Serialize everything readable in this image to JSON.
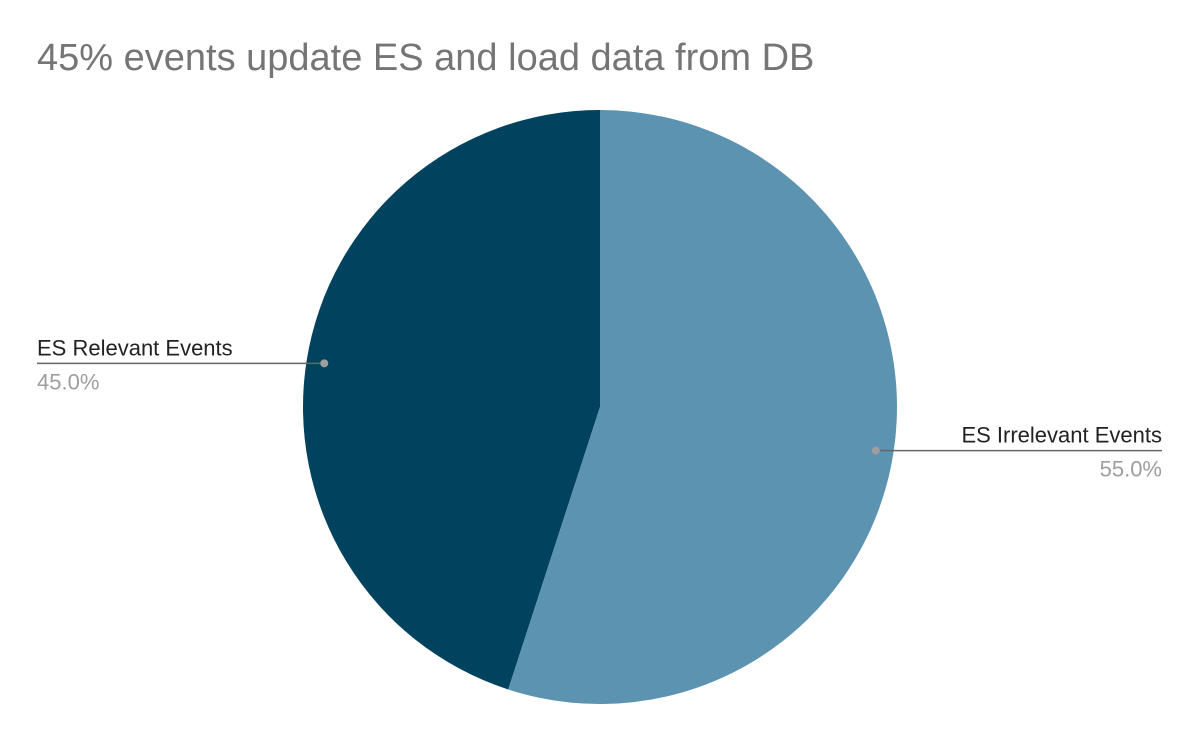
{
  "chart_data": {
    "type": "pie",
    "title": "45% events update ES and load data from DB",
    "start_angle_deg": 0,
    "direction": "counterclockwise",
    "slices": [
      {
        "name": "ES Relevant Events",
        "value": 45.0,
        "label": "45.0%",
        "color": "#01425f"
      },
      {
        "name": "ES Irrelevant Events",
        "value": 55.0,
        "label": "55.0%",
        "color": "#5b93b0"
      }
    ],
    "leader_line_color": "#666666",
    "legend": "none"
  }
}
